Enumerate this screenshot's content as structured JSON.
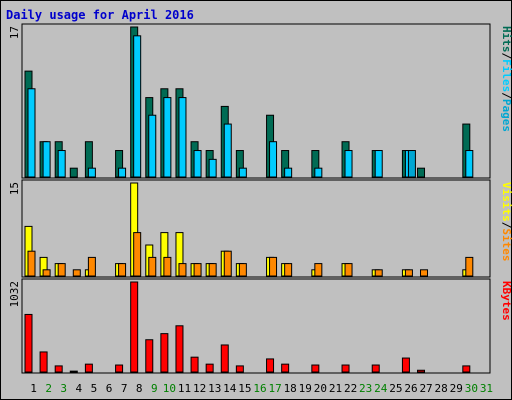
{
  "title": "Daily usage for April 2016",
  "colors": {
    "background": "#c0c0c0",
    "title": "#0000cc",
    "hits": "#006b54",
    "files": "#00ccff",
    "pages": "#00a6d2",
    "visits": "#ffff00",
    "sites": "#ff8800",
    "kbytes": "#ff0000",
    "weekday_label": "#000000",
    "weekend_label": "#008000"
  },
  "chart_data": [
    {
      "type": "bar",
      "panel": "hits-files-pages",
      "ylabel_max": "17",
      "ylim": [
        0,
        17
      ],
      "legend": [
        "Pages",
        "Files",
        "Hits"
      ],
      "categories": [
        "1",
        "2",
        "3",
        "4",
        "5",
        "6",
        "7",
        "8",
        "9",
        "10",
        "11",
        "12",
        "13",
        "14",
        "15",
        "16",
        "17",
        "18",
        "19",
        "20",
        "21",
        "22",
        "23",
        "24",
        "25",
        "26",
        "27",
        "28",
        "29",
        "30",
        "31"
      ],
      "series": [
        {
          "name": "Hits",
          "values": [
            12,
            4,
            4,
            1,
            4,
            0,
            3,
            17,
            9,
            10,
            10,
            4,
            3,
            8,
            3,
            0,
            7,
            3,
            0,
            3,
            0,
            4,
            0,
            3,
            0,
            3,
            1,
            0,
            0,
            6,
            0
          ]
        },
        {
          "name": "Files",
          "values": [
            10,
            4,
            3,
            0,
            1,
            0,
            1,
            16,
            7,
            9,
            9,
            3,
            2,
            6,
            1,
            0,
            4,
            1,
            0,
            1,
            0,
            3,
            0,
            3,
            0,
            3,
            0,
            0,
            0,
            3,
            0
          ]
        },
        {
          "name": "Pages",
          "values": [
            0,
            0,
            0,
            0,
            0,
            0,
            0,
            0,
            0,
            0,
            0,
            0,
            0,
            0,
            0,
            0,
            0,
            0,
            0,
            0,
            0,
            0,
            0,
            0,
            0,
            3,
            0,
            0,
            0,
            0,
            0
          ]
        }
      ]
    },
    {
      "type": "bar",
      "panel": "sites-visits",
      "ylabel_max": "15",
      "ylim": [
        0,
        15
      ],
      "legend": [
        "Sites",
        "Visits"
      ],
      "categories": [
        "1",
        "2",
        "3",
        "4",
        "5",
        "6",
        "7",
        "8",
        "9",
        "10",
        "11",
        "12",
        "13",
        "14",
        "15",
        "16",
        "17",
        "18",
        "19",
        "20",
        "21",
        "22",
        "23",
        "24",
        "25",
        "26",
        "27",
        "28",
        "29",
        "30",
        "31"
      ],
      "series": [
        {
          "name": "Visits",
          "values": [
            8,
            3,
            2,
            0,
            1,
            0,
            2,
            15,
            5,
            7,
            7,
            2,
            2,
            4,
            2,
            0,
            3,
            2,
            0,
            1,
            0,
            2,
            0,
            1,
            0,
            1,
            0,
            0,
            0,
            1,
            0
          ]
        },
        {
          "name": "Sites",
          "values": [
            4,
            1,
            2,
            1,
            3,
            0,
            2,
            7,
            3,
            3,
            2,
            2,
            2,
            4,
            2,
            0,
            3,
            2,
            0,
            2,
            0,
            2,
            0,
            1,
            0,
            1,
            1,
            0,
            0,
            3,
            0
          ]
        }
      ]
    },
    {
      "type": "bar",
      "panel": "kbytes",
      "ylabel_max": "1032",
      "ylim": [
        0,
        1032
      ],
      "legend": [
        "KBytes"
      ],
      "categories": [
        "1",
        "2",
        "3",
        "4",
        "5",
        "6",
        "7",
        "8",
        "9",
        "10",
        "11",
        "12",
        "13",
        "14",
        "15",
        "16",
        "17",
        "18",
        "19",
        "20",
        "21",
        "22",
        "23",
        "24",
        "25",
        "26",
        "27",
        "28",
        "29",
        "30",
        "31"
      ],
      "series": [
        {
          "name": "KBytes",
          "values": [
            660,
            230,
            70,
            10,
            90,
            0,
            80,
            1032,
            370,
            440,
            530,
            170,
            90,
            310,
            70,
            0,
            150,
            90,
            0,
            80,
            0,
            80,
            0,
            80,
            0,
            160,
            20,
            0,
            0,
            70,
            0
          ]
        }
      ]
    }
  ],
  "x_labels": [
    {
      "text": "1",
      "weekend": false
    },
    {
      "text": "2",
      "weekend": true
    },
    {
      "text": "3",
      "weekend": true
    },
    {
      "text": "4",
      "weekend": false
    },
    {
      "text": "5",
      "weekend": false
    },
    {
      "text": "6",
      "weekend": false
    },
    {
      "text": "7",
      "weekend": false
    },
    {
      "text": "8",
      "weekend": false
    },
    {
      "text": "9",
      "weekend": true
    },
    {
      "text": "10",
      "weekend": true
    },
    {
      "text": "11",
      "weekend": false
    },
    {
      "text": "12",
      "weekend": false
    },
    {
      "text": "13",
      "weekend": false
    },
    {
      "text": "14",
      "weekend": false
    },
    {
      "text": "15",
      "weekend": false
    },
    {
      "text": "16",
      "weekend": true
    },
    {
      "text": "17",
      "weekend": true
    },
    {
      "text": "18",
      "weekend": false
    },
    {
      "text": "19",
      "weekend": false
    },
    {
      "text": "20",
      "weekend": false
    },
    {
      "text": "21",
      "weekend": false
    },
    {
      "text": "22",
      "weekend": false
    },
    {
      "text": "23",
      "weekend": true
    },
    {
      "text": "24",
      "weekend": true
    },
    {
      "text": "25",
      "weekend": false
    },
    {
      "text": "26",
      "weekend": false
    },
    {
      "text": "27",
      "weekend": false
    },
    {
      "text": "28",
      "weekend": false
    },
    {
      "text": "29",
      "weekend": false
    },
    {
      "text": "30",
      "weekend": true
    },
    {
      "text": "31",
      "weekend": true
    }
  ]
}
